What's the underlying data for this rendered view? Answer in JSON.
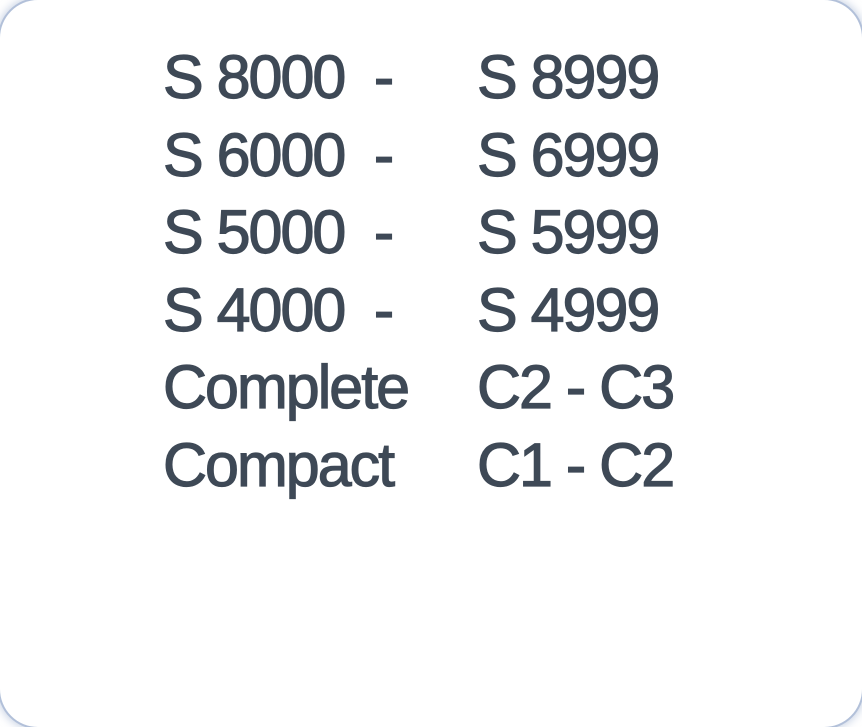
{
  "card": {
    "background_color": "#ffffff",
    "edge_color": "#b2c0d9",
    "text_color": "#3e4956"
  },
  "table": {
    "rows": [
      {
        "left": "S 8000",
        "dash": "-",
        "right": "S 8999"
      },
      {
        "left": "S 6000",
        "dash": "-",
        "right": "S 6999"
      },
      {
        "left": "S 5000",
        "dash": "-",
        "right": "S 5999"
      },
      {
        "left": "S 4000",
        "dash": "-",
        "right": "S 4999"
      },
      {
        "left": "Complete",
        "dash": "",
        "right": "C2 - C3"
      },
      {
        "left": "Compact",
        "dash": "",
        "right": "C1 - C2"
      }
    ]
  }
}
